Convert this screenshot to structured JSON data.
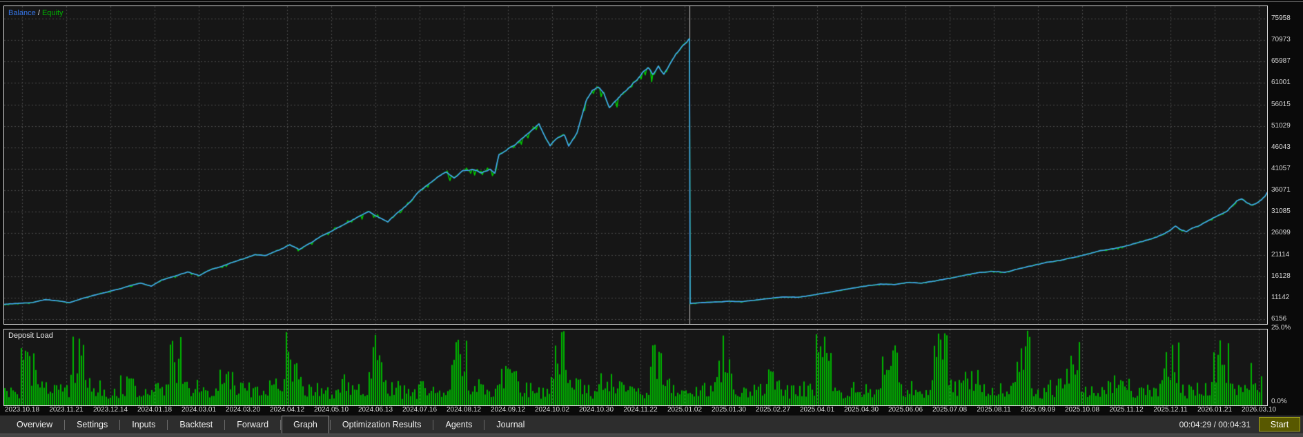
{
  "legend": {
    "balance_label": "Balance",
    "separator": " / ",
    "equity_label": "Equity"
  },
  "colors": {
    "balance_text": "#3576e8",
    "balance_line": "#45a0f8",
    "equity_text": "#00b400",
    "equity_line": "#00cc00",
    "histogram": "#00b400",
    "grid": "#4b4b4b",
    "panel_bg": "#161616",
    "panel_border": "#dcdcdc",
    "forward_line": "#bfbfbf",
    "start_button_bg": "#585800",
    "start_button_border": "#a5a51e"
  },
  "y_axis": {
    "labels": [
      "75958",
      "70973",
      "65987",
      "61001",
      "56015",
      "51029",
      "46043",
      "41057",
      "36071",
      "31085",
      "26099",
      "21114",
      "16128",
      "11142",
      "6156"
    ]
  },
  "deposit_panel": {
    "title": "Deposit Load",
    "max_label": "25.0%",
    "min_label": "0.0%"
  },
  "x_axis": {
    "labels": [
      "2023.10.18",
      "2023.11.21",
      "2023.12.14",
      "2024.01.18",
      "2024.03.01",
      "2024.03.20",
      "2024.04.12",
      "2024.05.10",
      "2024.06.13",
      "2024.07.16",
      "2024.08.12",
      "2024.09.12",
      "2024.10.02",
      "2024.10.30",
      "2024.11.22",
      "2025.01.02",
      "2025.01.30",
      "2025.02.27",
      "2025.04.01",
      "2025.04.30",
      "2025.06.06",
      "2025.07.08",
      "2025.08.11",
      "2025.09.09",
      "2025.10.08",
      "2025.11.12",
      "2025.12.11",
      "2026.01.21",
      "2026.03.10"
    ]
  },
  "tabs": {
    "items": [
      {
        "label": "Overview",
        "selected": false
      },
      {
        "label": "Settings",
        "selected": false
      },
      {
        "label": "Inputs",
        "selected": false
      },
      {
        "label": "Backtest",
        "selected": false
      },
      {
        "label": "Forward",
        "selected": false
      },
      {
        "label": "Graph",
        "selected": true
      },
      {
        "label": "Optimization Results",
        "selected": false
      },
      {
        "label": "Agents",
        "selected": false
      },
      {
        "label": "Journal",
        "selected": false
      }
    ]
  },
  "status": {
    "elapsed": "00:04:29 / 00:04:31",
    "start_label": "Start"
  },
  "chart_data": [
    {
      "type": "line",
      "title": "Balance/Equity curve (backtest then forward)",
      "ylim": [
        6156,
        75958
      ],
      "y_ticks": [
        75958,
        70973,
        65987,
        61001,
        56015,
        51029,
        46043,
        41057,
        36071,
        31085,
        26099,
        21114,
        16128,
        11142,
        6156
      ],
      "x_tick_labels": [
        "2023.10.18",
        "2023.11.21",
        "2023.12.14",
        "2024.01.18",
        "2024.03.01",
        "2024.03.20",
        "2024.04.12",
        "2024.05.10",
        "2024.06.13",
        "2024.07.16",
        "2024.08.12",
        "2024.09.12",
        "2024.10.02",
        "2024.10.30",
        "2024.11.22",
        "2025.01.02",
        "2025.01.30",
        "2025.02.27",
        "2025.04.01",
        "2025.04.30",
        "2025.06.06",
        "2025.07.08",
        "2025.08.11",
        "2025.09.09",
        "2025.10.08",
        "2025.11.12",
        "2025.12.11",
        "2026.01.21",
        "2026.03.10"
      ],
      "grid": true,
      "legend_position": "top-left",
      "forward_start_x": 993,
      "forward_reset_value": 9800,
      "peak_before_forward": 71300,
      "series": [
        {
          "name": "Balance",
          "points": [
            [
              0,
              9600
            ],
            [
              18,
              9800
            ],
            [
              40,
              10000
            ],
            [
              60,
              10700
            ],
            [
              78,
              10400
            ],
            [
              95,
              10000
            ],
            [
              112,
              10900
            ],
            [
              130,
              11700
            ],
            [
              150,
              12500
            ],
            [
              168,
              13200
            ],
            [
              183,
              14000
            ],
            [
              198,
              14500
            ],
            [
              213,
              13800
            ],
            [
              228,
              15200
            ],
            [
              248,
              16200
            ],
            [
              266,
              17100
            ],
            [
              283,
              16300
            ],
            [
              300,
              17700
            ],
            [
              316,
              18500
            ],
            [
              332,
              19400
            ],
            [
              350,
              20400
            ],
            [
              364,
              21100
            ],
            [
              380,
              21000
            ],
            [
              398,
              22200
            ],
            [
              414,
              23400
            ],
            [
              428,
              22300
            ],
            [
              444,
              23900
            ],
            [
              460,
              25500
            ],
            [
              479,
              27000
            ],
            [
              498,
              28600
            ],
            [
              513,
              30000
            ],
            [
              528,
              31100
            ],
            [
              543,
              29800
            ],
            [
              556,
              28700
            ],
            [
              570,
              30900
            ],
            [
              585,
              32800
            ],
            [
              600,
              35700
            ],
            [
              614,
              37300
            ],
            [
              627,
              39000
            ],
            [
              640,
              40400
            ],
            [
              652,
              39000
            ],
            [
              664,
              40600
            ],
            [
              678,
              40900
            ],
            [
              691,
              40200
            ],
            [
              704,
              41000
            ],
            [
              711,
              40200
            ],
            [
              717,
              44500
            ],
            [
              729,
              45600
            ],
            [
              742,
              47000
            ],
            [
              755,
              48700
            ],
            [
              767,
              50300
            ],
            [
              775,
              51500
            ],
            [
              783,
              48800
            ],
            [
              791,
              46400
            ],
            [
              801,
              48300
            ],
            [
              812,
              48900
            ],
            [
              818,
              46300
            ],
            [
              830,
              49600
            ],
            [
              843,
              56700
            ],
            [
              852,
              59300
            ],
            [
              861,
              60200
            ],
            [
              869,
              58800
            ],
            [
              877,
              55500
            ],
            [
              886,
              56800
            ],
            [
              896,
              58500
            ],
            [
              906,
              60000
            ],
            [
              915,
              61500
            ],
            [
              925,
              63500
            ],
            [
              933,
              64500
            ],
            [
              940,
              63000
            ],
            [
              948,
              64800
            ],
            [
              956,
              63000
            ],
            [
              965,
              65500
            ],
            [
              975,
              68000
            ],
            [
              985,
              70000
            ],
            [
              993,
              71300
            ],
            [
              994,
              9800
            ],
            [
              1010,
              10000
            ],
            [
              1030,
              10150
            ],
            [
              1050,
              10300
            ],
            [
              1070,
              10250
            ],
            [
              1090,
              10600
            ],
            [
              1110,
              11000
            ],
            [
              1130,
              11350
            ],
            [
              1150,
              11250
            ],
            [
              1170,
              11700
            ],
            [
              1190,
              12250
            ],
            [
              1210,
              12800
            ],
            [
              1230,
              13400
            ],
            [
              1250,
              13900
            ],
            [
              1270,
              14300
            ],
            [
              1290,
              14200
            ],
            [
              1310,
              14650
            ],
            [
              1330,
              14550
            ],
            [
              1350,
              15050
            ],
            [
              1370,
              15600
            ],
            [
              1390,
              16300
            ],
            [
              1410,
              16900
            ],
            [
              1430,
              17250
            ],
            [
              1450,
              17050
            ],
            [
              1470,
              17800
            ],
            [
              1490,
              18600
            ],
            [
              1510,
              19300
            ],
            [
              1530,
              19850
            ],
            [
              1550,
              20550
            ],
            [
              1570,
              21300
            ],
            [
              1590,
              22050
            ],
            [
              1610,
              22650
            ],
            [
              1630,
              23350
            ],
            [
              1650,
              24250
            ],
            [
              1670,
              25150
            ],
            [
              1688,
              26600
            ],
            [
              1697,
              27700
            ],
            [
              1705,
              27000
            ],
            [
              1713,
              26500
            ],
            [
              1722,
              27300
            ],
            [
              1732,
              27900
            ],
            [
              1742,
              28700
            ],
            [
              1752,
              29600
            ],
            [
              1762,
              30400
            ],
            [
              1772,
              31200
            ],
            [
              1779,
              32500
            ],
            [
              1786,
              33600
            ],
            [
              1793,
              34000
            ],
            [
              1800,
              33200
            ],
            [
              1808,
              32600
            ],
            [
              1815,
              33100
            ],
            [
              1822,
              33900
            ],
            [
              1827,
              34700
            ],
            [
              1830,
              35600
            ]
          ]
        },
        {
          "name": "Equity",
          "follows": "Balance",
          "spike_amplitude_pct": 3.5
        }
      ]
    },
    {
      "type": "bar",
      "title": "Deposit Load",
      "unit": "percent",
      "ylim": [
        0,
        25
      ],
      "envelope": [
        6,
        20,
        8,
        7,
        24,
        9,
        6,
        10,
        7,
        8,
        23,
        9,
        6,
        12,
        8,
        7,
        9,
        25,
        8,
        6,
        11,
        7,
        24,
        9,
        7,
        8,
        6,
        22,
        9,
        7,
        13,
        8,
        6,
        25,
        9,
        7,
        11,
        8,
        6,
        21,
        9,
        7,
        8,
        24,
        6,
        9,
        12,
        7,
        8,
        25,
        6,
        9,
        7,
        20,
        8,
        6,
        24,
        9,
        12,
        7,
        8,
        25,
        6,
        9,
        21,
        7,
        8,
        11,
        6,
        9,
        24,
        7,
        8,
        22,
        9,
        14
      ]
    }
  ]
}
